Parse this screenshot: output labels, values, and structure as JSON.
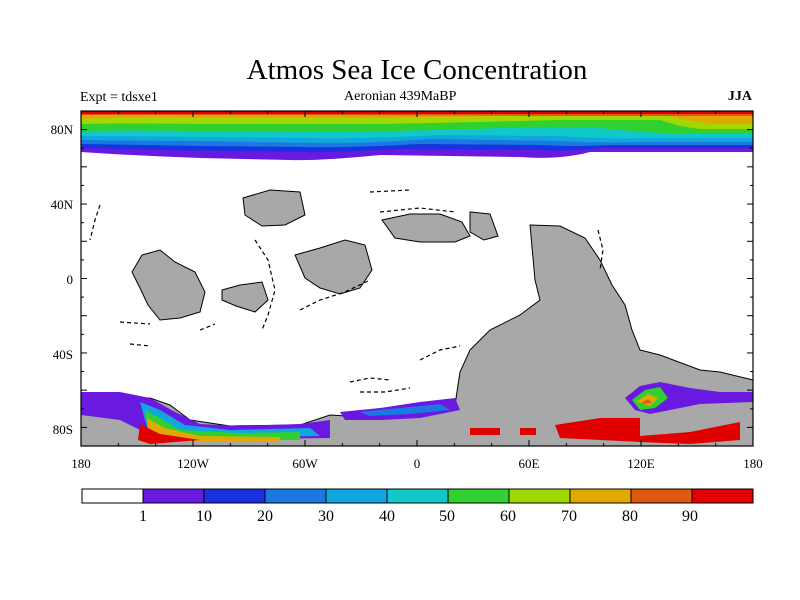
{
  "title": "Atmos Sea Ice Concentration",
  "experiment": "Expt = tdsxe1",
  "period": "Aeronian 439MaBP",
  "season": "JJA",
  "map": {
    "lon_range": [
      -180,
      180
    ],
    "lat_range": [
      -90,
      90
    ],
    "x_tick_labels": [
      "180",
      "120W",
      "60W",
      "0",
      "60E",
      "120E",
      "180"
    ],
    "y_tick_labels": [
      "80N",
      "40N",
      "0",
      "40S",
      "80S"
    ]
  },
  "colorbar": {
    "labels": [
      "1",
      "10",
      "20",
      "30",
      "40",
      "50",
      "60",
      "70",
      "80",
      "90"
    ],
    "colors": [
      "#ffffff",
      "#6a1ae0",
      "#1a32e0",
      "#1a78e0",
      "#10a6e0",
      "#10c8c8",
      "#30d030",
      "#a0d800",
      "#e0a800",
      "#e05810",
      "#e00000"
    ]
  },
  "colors": {
    "land": "#a8a8a8",
    "ocean": "#ffffff",
    "coast": "#000000"
  }
}
